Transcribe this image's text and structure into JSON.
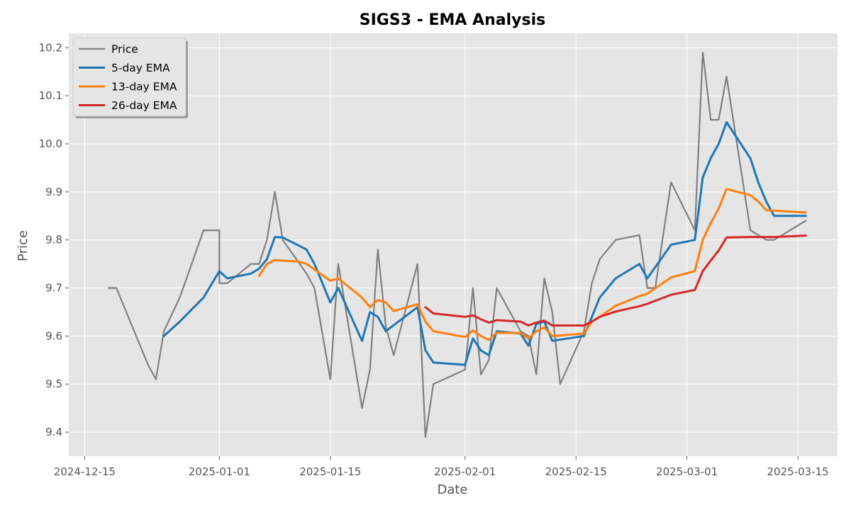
{
  "chart_data": {
    "type": "line",
    "title": "SIGS3 - EMA Analysis",
    "xlabel": "Date",
    "ylabel": "Price",
    "x_ticks": [
      "2024-12-15",
      "2025-01-01",
      "2025-01-15",
      "2025-02-01",
      "2025-02-15",
      "2025-03-01",
      "2025-03-15"
    ],
    "y_ticks": [
      "9.4",
      "9.5",
      "9.6",
      "9.7",
      "9.8",
      "9.9",
      "10.0",
      "10.1",
      "10.2"
    ],
    "ylim": [
      9.35,
      10.23
    ],
    "xlim": [
      "2024-12-13",
      "2025-03-20"
    ],
    "grid": true,
    "legend_position": "top-left",
    "background": "#e5e5e5",
    "series": [
      {
        "name": "Price",
        "color": "#808080",
        "points": [
          [
            "2024-12-18",
            9.7
          ],
          [
            "2024-12-19",
            9.7
          ],
          [
            "2024-12-23",
            9.54
          ],
          [
            "2024-12-24",
            9.51
          ],
          [
            "2024-12-25",
            9.61
          ],
          [
            "2024-12-27",
            9.68
          ],
          [
            "2024-12-30",
            9.82
          ],
          [
            "2025-01-01",
            9.82
          ],
          [
            "2025-01-01",
            9.71
          ],
          [
            "2025-01-02",
            9.71
          ],
          [
            "2025-01-05",
            9.75
          ],
          [
            "2025-01-06",
            9.75
          ],
          [
            "2025-01-07",
            9.8
          ],
          [
            "2025-01-08",
            9.9
          ],
          [
            "2025-01-09",
            9.8
          ],
          [
            "2025-01-12",
            9.73
          ],
          [
            "2025-01-13",
            9.7
          ],
          [
            "2025-01-15",
            9.51
          ],
          [
            "2025-01-16",
            9.75
          ],
          [
            "2025-01-19",
            9.45
          ],
          [
            "2025-01-20",
            9.53
          ],
          [
            "2025-01-21",
            9.78
          ],
          [
            "2025-01-22",
            9.62
          ],
          [
            "2025-01-23",
            9.56
          ],
          [
            "2025-01-26",
            9.75
          ],
          [
            "2025-01-27",
            9.39
          ],
          [
            "2025-01-28",
            9.5
          ],
          [
            "2025-02-01",
            9.53
          ],
          [
            "2025-02-02",
            9.7
          ],
          [
            "2025-02-03",
            9.52
          ],
          [
            "2025-02-04",
            9.55
          ],
          [
            "2025-02-05",
            9.7
          ],
          [
            "2025-02-08",
            9.61
          ],
          [
            "2025-02-09",
            9.6
          ],
          [
            "2025-02-10",
            9.52
          ],
          [
            "2025-02-11",
            9.72
          ],
          [
            "2025-02-12",
            9.65
          ],
          [
            "2025-02-13",
            9.5
          ],
          [
            "2025-02-16",
            9.61
          ],
          [
            "2025-02-17",
            9.71
          ],
          [
            "2025-02-18",
            9.76
          ],
          [
            "2025-02-20",
            9.8
          ],
          [
            "2025-02-23",
            9.81
          ],
          [
            "2025-02-24",
            9.7
          ],
          [
            "2025-02-25",
            9.7
          ],
          [
            "2025-02-27",
            9.92
          ],
          [
            "2025-03-02",
            9.82
          ],
          [
            "2025-03-03",
            10.19
          ],
          [
            "2025-03-04",
            10.05
          ],
          [
            "2025-03-05",
            10.05
          ],
          [
            "2025-03-06",
            10.14
          ],
          [
            "2025-03-09",
            9.82
          ],
          [
            "2025-03-11",
            9.8
          ],
          [
            "2025-03-12",
            9.8
          ],
          [
            "2025-03-16",
            9.84
          ]
        ]
      },
      {
        "name": "5-day EMA",
        "color": "#1f77b4",
        "points": [
          [
            "2024-12-25",
            9.6
          ],
          [
            "2024-12-27",
            9.63
          ],
          [
            "2024-12-30",
            9.68
          ],
          [
            "2025-01-01",
            9.735
          ],
          [
            "2025-01-02",
            9.72
          ],
          [
            "2025-01-05",
            9.73
          ],
          [
            "2025-01-06",
            9.74
          ],
          [
            "2025-01-07",
            9.76
          ],
          [
            "2025-01-08",
            9.806
          ],
          [
            "2025-01-09",
            9.805
          ],
          [
            "2025-01-12",
            9.78
          ],
          [
            "2025-01-13",
            9.75
          ],
          [
            "2025-01-15",
            9.67
          ],
          [
            "2025-01-16",
            9.7
          ],
          [
            "2025-01-19",
            9.59
          ],
          [
            "2025-01-20",
            9.65
          ],
          [
            "2025-01-21",
            9.64
          ],
          [
            "2025-01-22",
            9.61
          ],
          [
            "2025-01-26",
            9.66
          ],
          [
            "2025-01-27",
            9.57
          ],
          [
            "2025-01-28",
            9.545
          ],
          [
            "2025-02-01",
            9.54
          ],
          [
            "2025-02-02",
            9.595
          ],
          [
            "2025-02-03",
            9.57
          ],
          [
            "2025-02-04",
            9.56
          ],
          [
            "2025-02-05",
            9.61
          ],
          [
            "2025-02-08",
            9.605
          ],
          [
            "2025-02-09",
            9.58
          ],
          [
            "2025-02-10",
            9.625
          ],
          [
            "2025-02-11",
            9.63
          ],
          [
            "2025-02-12",
            9.59
          ],
          [
            "2025-02-16",
            9.6
          ],
          [
            "2025-02-17",
            9.64
          ],
          [
            "2025-02-18",
            9.68
          ],
          [
            "2025-02-20",
            9.72
          ],
          [
            "2025-02-23",
            9.75
          ],
          [
            "2025-02-24",
            9.72
          ],
          [
            "2025-02-27",
            9.79
          ],
          [
            "2025-03-02",
            9.8
          ],
          [
            "2025-03-03",
            9.93
          ],
          [
            "2025-03-04",
            9.97
          ],
          [
            "2025-03-05",
            10.0
          ],
          [
            "2025-03-06",
            10.045
          ],
          [
            "2025-03-09",
            9.97
          ],
          [
            "2025-03-10",
            9.92
          ],
          [
            "2025-03-11",
            9.88
          ],
          [
            "2025-03-12",
            9.85
          ],
          [
            "2025-03-16",
            9.85
          ]
        ]
      },
      {
        "name": "13-day EMA",
        "color": "#ff7f0e",
        "points": [
          [
            "2025-01-06",
            9.725
          ],
          [
            "2025-01-07",
            9.75
          ],
          [
            "2025-01-08",
            9.758
          ],
          [
            "2025-01-11",
            9.755
          ],
          [
            "2025-01-12",
            9.75
          ],
          [
            "2025-01-15",
            9.715
          ],
          [
            "2025-01-16",
            9.72
          ],
          [
            "2025-01-19",
            9.68
          ],
          [
            "2025-01-20",
            9.66
          ],
          [
            "2025-01-21",
            9.675
          ],
          [
            "2025-01-22",
            9.67
          ],
          [
            "2025-01-23",
            9.652
          ],
          [
            "2025-01-26",
            9.666
          ],
          [
            "2025-01-27",
            9.63
          ],
          [
            "2025-01-28",
            9.61
          ],
          [
            "2025-02-01",
            9.598
          ],
          [
            "2025-02-02",
            9.612
          ],
          [
            "2025-02-03",
            9.6
          ],
          [
            "2025-02-04",
            9.592
          ],
          [
            "2025-02-05",
            9.607
          ],
          [
            "2025-02-08",
            9.606
          ],
          [
            "2025-02-09",
            9.595
          ],
          [
            "2025-02-10",
            9.61
          ],
          [
            "2025-02-11",
            9.618
          ],
          [
            "2025-02-12",
            9.6
          ],
          [
            "2025-02-16",
            9.605
          ],
          [
            "2025-02-17",
            9.63
          ],
          [
            "2025-02-18",
            9.64
          ],
          [
            "2025-02-20",
            9.663
          ],
          [
            "2025-02-23",
            9.683
          ],
          [
            "2025-02-24",
            9.688
          ],
          [
            "2025-02-27",
            9.722
          ],
          [
            "2025-03-02",
            9.735
          ],
          [
            "2025-03-03",
            9.8
          ],
          [
            "2025-03-04",
            9.835
          ],
          [
            "2025-03-05",
            9.865
          ],
          [
            "2025-03-06",
            9.906
          ],
          [
            "2025-03-09",
            9.893
          ],
          [
            "2025-03-10",
            9.88
          ],
          [
            "2025-03-11",
            9.862
          ],
          [
            "2025-03-16",
            9.857
          ]
        ]
      },
      {
        "name": "26-day EMA",
        "color": "#d62728",
        "points": [
          [
            "2025-01-27",
            9.66
          ],
          [
            "2025-01-28",
            9.647
          ],
          [
            "2025-02-01",
            9.64
          ],
          [
            "2025-02-02",
            9.643
          ],
          [
            "2025-02-03",
            9.635
          ],
          [
            "2025-02-04",
            9.628
          ],
          [
            "2025-02-05",
            9.633
          ],
          [
            "2025-02-08",
            9.63
          ],
          [
            "2025-02-09",
            9.622
          ],
          [
            "2025-02-10",
            9.628
          ],
          [
            "2025-02-11",
            9.632
          ],
          [
            "2025-02-12",
            9.622
          ],
          [
            "2025-02-16",
            9.622
          ],
          [
            "2025-02-17",
            9.63
          ],
          [
            "2025-02-18",
            9.64
          ],
          [
            "2025-02-20",
            9.651
          ],
          [
            "2025-02-23",
            9.662
          ],
          [
            "2025-02-24",
            9.667
          ],
          [
            "2025-02-27",
            9.686
          ],
          [
            "2025-03-02",
            9.696
          ],
          [
            "2025-03-03",
            9.735
          ],
          [
            "2025-03-04",
            9.757
          ],
          [
            "2025-03-05",
            9.778
          ],
          [
            "2025-03-06",
            9.805
          ],
          [
            "2025-03-09",
            9.806
          ],
          [
            "2025-03-12",
            9.806
          ],
          [
            "2025-03-16",
            9.809
          ]
        ]
      }
    ]
  }
}
